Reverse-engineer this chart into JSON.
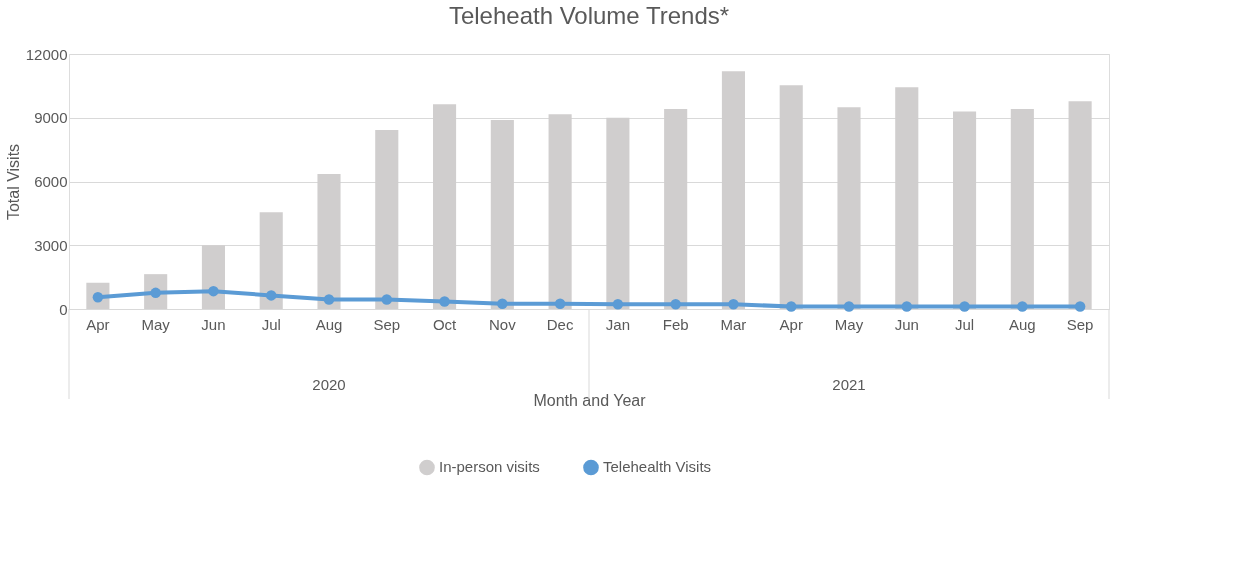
{
  "chart_data": {
    "type": "bar",
    "title": "Teleheath Volume Trends*",
    "xlabel": "Month and Year",
    "ylabel": "Total Visits",
    "categories": [
      "Apr",
      "May",
      "Jun",
      "Jul",
      "Aug",
      "Sep",
      "Oct",
      "Nov",
      "Dec",
      "Jan",
      "Feb",
      "Mar",
      "Apr",
      "May",
      "Jun",
      "Jul",
      "Aug",
      "Sep"
    ],
    "annotations": [
      "2020",
      "2021"
    ],
    "series": [
      {
        "name": "In-person visits",
        "color": "#d0cece",
        "values": [
          1240,
          1640,
          3000,
          4550,
          6350,
          8420,
          9640,
          8890,
          9160,
          9000,
          9410,
          11190,
          10530,
          9490,
          10440,
          9300,
          9410,
          9780
        ]
      },
      {
        "name": "Telehealth Visits",
        "type": "line",
        "color": "#5b9bd5",
        "values": [
          550,
          760,
          840,
          640,
          450,
          450,
          350,
          250,
          250,
          220,
          220,
          220,
          120,
          120,
          120,
          120,
          120,
          120
        ]
      }
    ],
    "ylim": [
      0,
      12000
    ],
    "yticks": [
      0,
      3000,
      6000,
      9000,
      12000
    ],
    "grid": "y",
    "legend": "bottom",
    "marker": "circle",
    "line_style": "solid"
  }
}
